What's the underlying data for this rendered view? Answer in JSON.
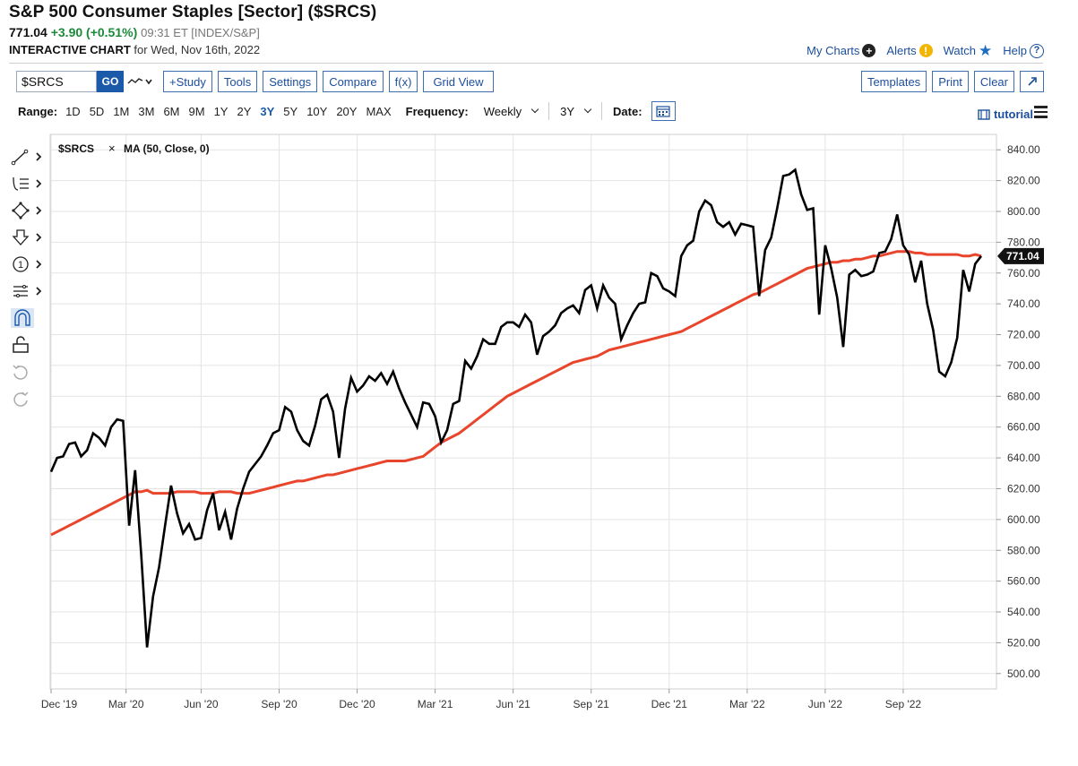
{
  "header": {
    "title": "S&P 500 Consumer Staples [Sector] ($SRCS)",
    "last": "771.04",
    "change": "+3.90 (+0.51%)",
    "meta": "09:31 ET [INDEX/S&P]",
    "chart_label": "INTERACTIVE CHART",
    "date_text": "for Wed, Nov 16th, 2022"
  },
  "top_links": {
    "my_charts": "My Charts",
    "alerts": "Alerts",
    "watch": "Watch",
    "help": "Help"
  },
  "toolbar": {
    "symbol_value": "$SRCS",
    "go": "GO",
    "buttons": [
      "+Study",
      "Tools",
      "Settings",
      "Compare",
      "f(x)",
      "Grid View"
    ],
    "right_buttons": [
      "Templates",
      "Print",
      "Clear"
    ]
  },
  "range_bar": {
    "range_label": "Range:",
    "ranges": [
      "1D",
      "5D",
      "1M",
      "3M",
      "6M",
      "9M",
      "1Y",
      "2Y",
      "3Y",
      "5Y",
      "10Y",
      "20Y",
      "MAX"
    ],
    "active_range": "3Y",
    "frequency_label": "Frequency:",
    "frequency_value": "Weekly",
    "period_value": "3Y",
    "date_label": "Date:",
    "tutorial": "tutorial"
  },
  "colors": {
    "price_line": "#000000",
    "ma_line": "#e8452c",
    "accent": "#1b5aa8",
    "up": "#1a8a3a"
  },
  "chart_data": {
    "type": "line",
    "legend": [
      "$SRCS",
      "MA (50, Close, 0)"
    ],
    "last_value_label": "771.04",
    "ylim": [
      490,
      850
    ],
    "y_ticks": [
      "500.00",
      "520.00",
      "540.00",
      "560.00",
      "580.00",
      "600.00",
      "620.00",
      "640.00",
      "660.00",
      "680.00",
      "700.00",
      "720.00",
      "740.00",
      "760.00",
      "780.00",
      "800.00",
      "820.00",
      "840.00"
    ],
    "x_ticks": [
      "Dec '19",
      "Mar '20",
      "Jun '20",
      "Sep '20",
      "Dec '20",
      "Mar '21",
      "Jun '21",
      "Sep '21",
      "Dec '21",
      "Mar '22",
      "Jun '22",
      "Sep '22"
    ],
    "series": [
      {
        "name": "$SRCS",
        "values": [
          631,
          640,
          641,
          649,
          650,
          641,
          645,
          656,
          653,
          648,
          660,
          665,
          664,
          596,
          632,
          578,
          517,
          550,
          569,
          596,
          622,
          604,
          591,
          597,
          587,
          588,
          606,
          617,
          593,
          605,
          587,
          607,
          620,
          631,
          636,
          641,
          648,
          656,
          658,
          673,
          670,
          658,
          651,
          648,
          661,
          678,
          681,
          670,
          640,
          672,
          692,
          683,
          687,
          693,
          690,
          695,
          688,
          696,
          685,
          676,
          668,
          660,
          676,
          675,
          667,
          650,
          658,
          675,
          677,
          703,
          698,
          706,
          717,
          714,
          714,
          725,
          728,
          728,
          725,
          733,
          728,
          707,
          719,
          722,
          726,
          734,
          737,
          739,
          734,
          749,
          752,
          737,
          752,
          744,
          740,
          717,
          726,
          734,
          740,
          741,
          760,
          758,
          750,
          748,
          745,
          771,
          778,
          781,
          800,
          807,
          804,
          793,
          790,
          793,
          785,
          792,
          791,
          790,
          745,
          775,
          783,
          802,
          823,
          824,
          827,
          811,
          801,
          802,
          733,
          778,
          763,
          744,
          712,
          759,
          762,
          758,
          759,
          761,
          773,
          774,
          782,
          798,
          778,
          772,
          754,
          768,
          740,
          723,
          696,
          693,
          702,
          718,
          762,
          748,
          766,
          771
        ]
      },
      {
        "name": "MA (50, Close, 0)",
        "values": [
          590,
          592,
          594,
          596,
          598,
          600,
          602,
          604,
          606,
          608,
          610,
          612,
          614,
          616,
          618,
          618,
          619,
          617,
          617,
          617,
          617,
          618,
          618,
          618,
          618,
          617,
          617,
          617,
          618,
          618,
          618,
          617,
          617,
          617,
          618,
          619,
          620,
          621,
          622,
          623,
          624,
          625,
          625,
          626,
          627,
          628,
          629,
          629,
          630,
          631,
          632,
          633,
          634,
          635,
          636,
          637,
          638,
          638,
          638,
          638,
          639,
          640,
          641,
          644,
          647,
          650,
          652,
          654,
          656,
          659,
          662,
          665,
          668,
          671,
          674,
          677,
          680,
          682,
          684,
          686,
          688,
          690,
          692,
          694,
          696,
          698,
          700,
          702,
          703,
          704,
          705,
          706,
          708,
          710,
          711,
          712,
          713,
          714,
          715,
          716,
          717,
          718,
          719,
          720,
          721,
          722,
          724,
          726,
          728,
          730,
          732,
          734,
          736,
          738,
          740,
          742,
          744,
          746,
          747,
          749,
          751,
          753,
          755,
          757,
          759,
          761,
          763,
          764,
          765,
          766,
          767,
          767,
          768,
          768,
          769,
          769,
          770,
          771,
          771,
          772,
          773,
          774,
          774,
          774,
          773,
          773,
          772,
          772,
          772,
          772,
          772,
          772,
          771,
          771,
          772,
          771
        ]
      }
    ]
  }
}
